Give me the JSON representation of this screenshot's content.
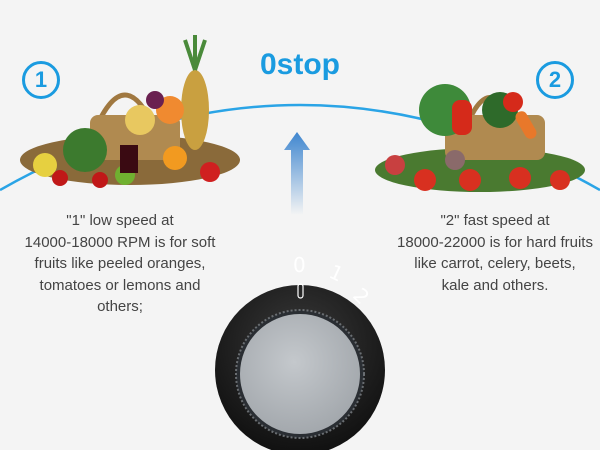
{
  "title": "0stop",
  "modes": [
    {
      "number": "1",
      "lines": [
        "\"1\" low speed at",
        "14000-18000 RPM is for soft",
        "fruits like peeled oranges,",
        "tomatoes or lemons and",
        "others;"
      ]
    },
    {
      "number": "2",
      "lines": [
        "\"2\" fast speed at",
        "18000-22000 is for hard fruits",
        "like carrot, celery, beets,",
        "kale and others."
      ]
    }
  ],
  "dial_labels": [
    "0",
    "1",
    "2"
  ],
  "colors": {
    "accent": "#1a9be0",
    "background": "#f4f4f4",
    "text": "#444444"
  }
}
